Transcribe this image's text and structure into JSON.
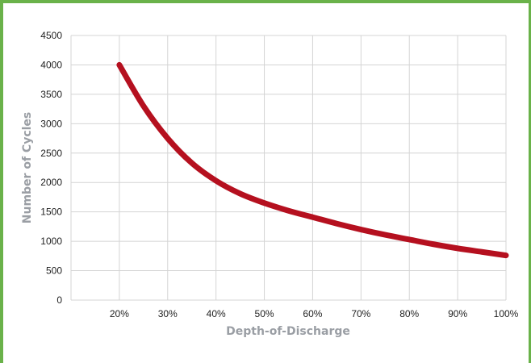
{
  "colors": {
    "frame": "#6ab24a",
    "grid": "#d4d4d4",
    "line": "#b5101f",
    "axis_label": "#9a9ea4"
  },
  "chart_data": {
    "type": "line",
    "title": "",
    "xlabel": "Depth-of-Discharge",
    "ylabel": "Number of Cycles",
    "x_categories": [
      "20%",
      "30%",
      "40%",
      "50%",
      "60%",
      "70%",
      "80%",
      "90%",
      "100%"
    ],
    "y_ticks": [
      "0",
      "500",
      "1000",
      "1500",
      "2000",
      "2500",
      "3000",
      "3500",
      "4000",
      "4500"
    ],
    "ylim": [
      0,
      4500
    ],
    "xlim": [
      10,
      100
    ],
    "grid": true,
    "legend": "none",
    "series": [
      {
        "x": [
          20,
          25,
          30,
          35,
          40,
          45,
          50,
          55,
          60,
          65,
          70,
          75,
          80,
          85,
          90,
          95,
          100
        ],
        "values": [
          4000,
          3300,
          2750,
          2330,
          2030,
          1810,
          1650,
          1520,
          1410,
          1300,
          1200,
          1110,
          1030,
          950,
          880,
          820,
          760
        ]
      }
    ]
  }
}
